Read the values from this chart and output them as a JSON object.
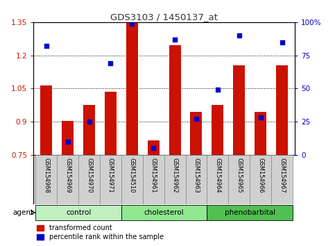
{
  "title": "GDS3103 / 1450137_at",
  "samples": [
    "GSM154968",
    "GSM154969",
    "GSM154970",
    "GSM154971",
    "GSM154510",
    "GSM154961",
    "GSM154962",
    "GSM154963",
    "GSM154964",
    "GSM154965",
    "GSM154966",
    "GSM154967"
  ],
  "transformed_count": [
    1.065,
    0.905,
    0.975,
    1.035,
    1.345,
    0.815,
    1.245,
    0.945,
    0.975,
    1.155,
    0.945,
    1.155
  ],
  "percentile_rank": [
    82,
    10,
    25,
    69,
    99,
    5,
    87,
    27,
    49,
    90,
    28,
    85
  ],
  "groups": [
    {
      "name": "control",
      "indices": [
        0,
        1,
        2,
        3
      ],
      "color": "#c0f0c0"
    },
    {
      "name": "cholesterol",
      "indices": [
        4,
        5,
        6,
        7
      ],
      "color": "#90e890"
    },
    {
      "name": "phenobarbital",
      "indices": [
        8,
        9,
        10,
        11
      ],
      "color": "#50c050"
    }
  ],
  "ylim_left": [
    0.75,
    1.35
  ],
  "ylim_right": [
    0,
    100
  ],
  "yticks_left": [
    0.75,
    0.9,
    1.05,
    1.2,
    1.35
  ],
  "yticks_right": [
    0,
    25,
    50,
    75,
    100
  ],
  "ytick_labels_right": [
    "0",
    "25",
    "50",
    "75",
    "100%"
  ],
  "bar_color": "#cc1100",
  "dot_color": "#0000cc",
  "bar_width": 0.55,
  "baseline": 0.75,
  "agent_label": "agent",
  "legend_bar": "transformed count",
  "legend_dot": "percentile rank within the sample",
  "left_tick_color": "#cc1100",
  "right_tick_color": "#0000cc",
  "gray_cell_color": "#d0d0d0",
  "cell_border_color": "#888888"
}
